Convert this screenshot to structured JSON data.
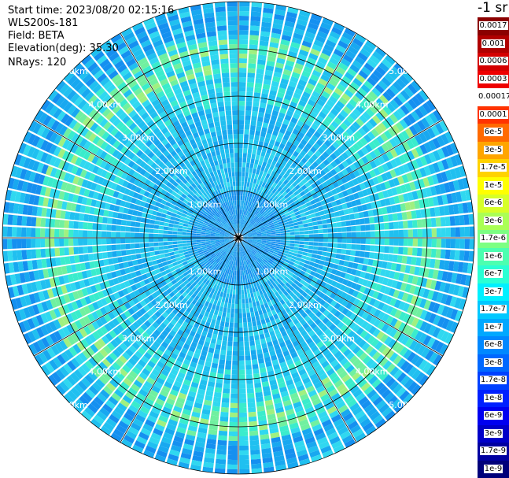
{
  "info": {
    "start_time": "Start time: 2023/08/20 02:15:16",
    "device": "WLS200s-181",
    "field": "Field: BETA",
    "elevation": "Elevation(deg): 35.30",
    "nrays": "NRays: 120"
  },
  "colorbar": {
    "unit": "-1 sr",
    "levels": [
      {
        "label": "0.0017",
        "color": "#8b0000"
      },
      {
        "label": "0.001",
        "color": "#b00000"
      },
      {
        "label": "0.0006",
        "color": "#d40000"
      },
      {
        "label": "0.0003",
        "color": "#ee0000"
      },
      {
        "label": "0.00017",
        "color": "#ffffff"
      },
      {
        "label": "0.0001",
        "color": "#ff3300"
      },
      {
        "label": "6e-5",
        "color": "#ff6a00"
      },
      {
        "label": "3e-5",
        "color": "#ffa500"
      },
      {
        "label": "1.7e-5",
        "color": "#ffd200"
      },
      {
        "label": "1e-5",
        "color": "#ffff00"
      },
      {
        "label": "6e-6",
        "color": "#d7ff27"
      },
      {
        "label": "3e-6",
        "color": "#aaff55"
      },
      {
        "label": "1.7e-6",
        "color": "#7cff82"
      },
      {
        "label": "1e-6",
        "color": "#4cffb0"
      },
      {
        "label": "6e-7",
        "color": "#2affd4"
      },
      {
        "label": "3e-7",
        "color": "#00f0ff"
      },
      {
        "label": "1.7e-7",
        "color": "#00c8ff"
      },
      {
        "label": "1e-7",
        "color": "#00a8ff"
      },
      {
        "label": "6e-8",
        "color": "#0088ff"
      },
      {
        "label": "3e-8",
        "color": "#0068ff"
      },
      {
        "label": "1.7e-8",
        "color": "#0040ff"
      },
      {
        "label": "1e-8",
        "color": "#0020ff"
      },
      {
        "label": "6e-9",
        "color": "#0000f0"
      },
      {
        "label": "3e-9",
        "color": "#0000c8"
      },
      {
        "label": "1.7e-9",
        "color": "#0000a0"
      },
      {
        "label": "1e-9",
        "color": "#00007a"
      }
    ]
  },
  "range_rings": [
    {
      "label": "1.00km"
    },
    {
      "label": "2.00km"
    },
    {
      "label": "3.00km"
    },
    {
      "label": "4.00km"
    },
    {
      "label": "5.00km"
    }
  ],
  "ppi_palette": [
    "#1060ee",
    "#1590f0",
    "#18a8f0",
    "#20c0f0",
    "#30d8f0",
    "#3aeccc",
    "#70f0a0",
    "#a0f080"
  ]
}
